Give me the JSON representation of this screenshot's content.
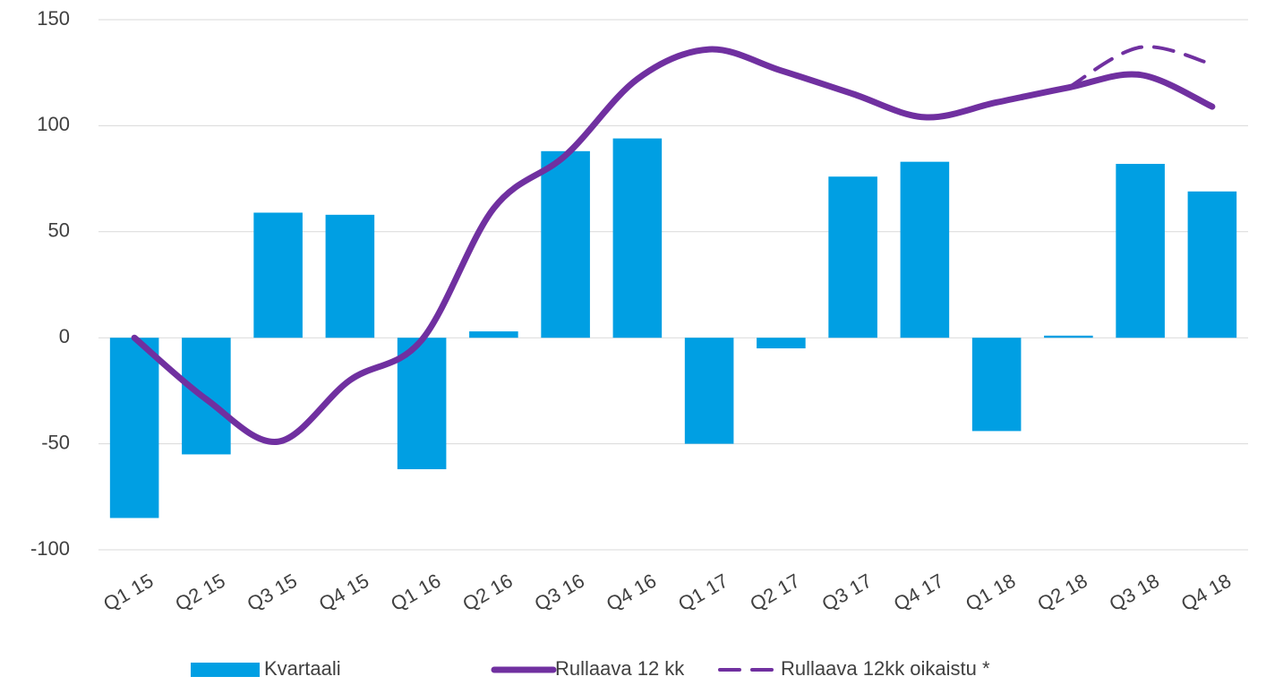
{
  "chart_data": {
    "type": "bar_line",
    "categories": [
      "Q1 15",
      "Q2 15",
      "Q3 15",
      "Q4 15",
      "Q1 16",
      "Q2 16",
      "Q3 16",
      "Q4 16",
      "Q1 17",
      "Q2 17",
      "Q3 17",
      "Q4 17",
      "Q1 18",
      "Q2 18",
      "Q3 18",
      "Q4 18"
    ],
    "series": [
      {
        "name": "Kvartaali",
        "type": "bar",
        "color": "#009fe3",
        "values": [
          -85,
          -55,
          59,
          58,
          -62,
          3,
          88,
          94,
          -50,
          -5,
          76,
          83,
          -44,
          1,
          82,
          69
        ]
      },
      {
        "name": "Rullaava 12 kk",
        "type": "line",
        "color": "#7030a0",
        "values": [
          0,
          -29,
          -49,
          -20,
          -1,
          61,
          86,
          122,
          136,
          126,
          115,
          104,
          111,
          118,
          124,
          109
        ]
      },
      {
        "name": "Rullaava 12kk oikaistu *",
        "type": "line",
        "dashed": true,
        "color": "#7030a0",
        "values": [
          null,
          null,
          null,
          null,
          null,
          null,
          null,
          null,
          null,
          null,
          null,
          null,
          null,
          118,
          137,
          129
        ]
      }
    ],
    "ylim": [
      -100,
      150
    ],
    "yticks": [
      -100,
      -50,
      0,
      50,
      100,
      150
    ],
    "grid": true,
    "legend": "bottom"
  }
}
